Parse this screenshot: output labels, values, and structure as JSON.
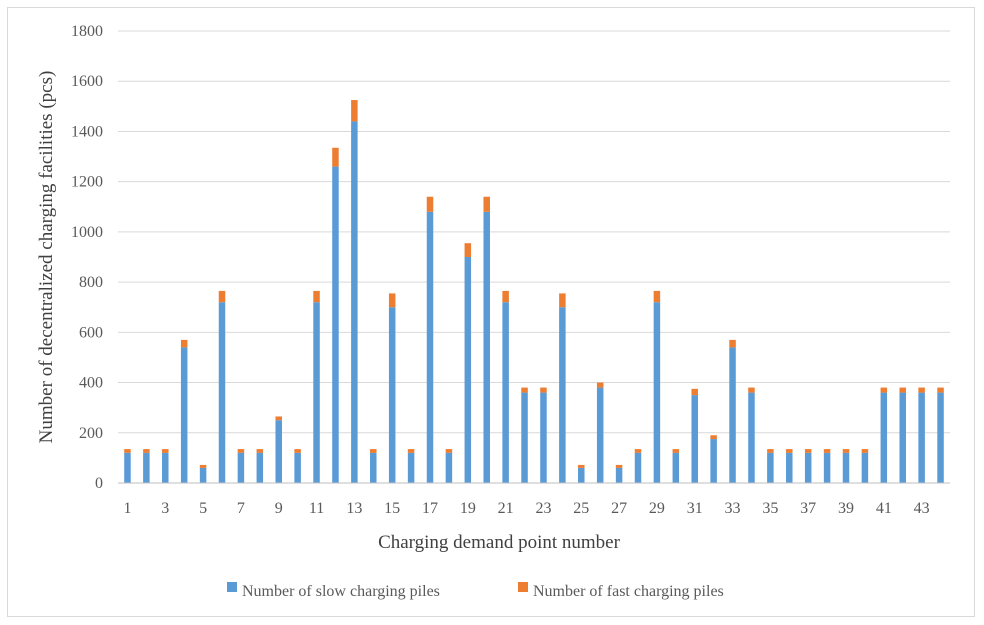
{
  "chart_data": {
    "type": "bar",
    "stacked": true,
    "x": [
      1,
      2,
      3,
      4,
      5,
      6,
      7,
      8,
      9,
      10,
      11,
      12,
      13,
      14,
      15,
      16,
      17,
      18,
      19,
      20,
      21,
      22,
      23,
      24,
      25,
      26,
      27,
      28,
      29,
      30,
      31,
      32,
      33,
      34,
      35,
      36,
      37,
      38,
      39,
      40,
      41,
      42,
      43,
      44
    ],
    "x_tick_labels": [
      "1",
      "3",
      "5",
      "7",
      "9",
      "11",
      "13",
      "15",
      "17",
      "19",
      "21",
      "23",
      "25",
      "27",
      "29",
      "31",
      "33",
      "35",
      "37",
      "39",
      "41",
      "43"
    ],
    "series": [
      {
        "name": "Number of slow charging piles",
        "color": "#5b9bd5",
        "values": [
          120,
          120,
          120,
          540,
          60,
          720,
          120,
          120,
          250,
          120,
          720,
          1260,
          1440,
          120,
          700,
          120,
          1080,
          120,
          900,
          1080,
          720,
          360,
          360,
          700,
          60,
          380,
          60,
          120,
          720,
          120,
          350,
          175,
          540,
          360,
          120,
          120,
          120,
          120,
          120,
          120,
          360,
          360,
          360,
          360
        ]
      },
      {
        "name": "Number of fast charging piles",
        "color": "#ed7d31",
        "values": [
          15,
          15,
          15,
          30,
          12,
          45,
          15,
          15,
          15,
          15,
          45,
          75,
          85,
          15,
          55,
          15,
          60,
          15,
          55,
          60,
          45,
          20,
          20,
          55,
          12,
          20,
          12,
          15,
          45,
          15,
          25,
          15,
          30,
          20,
          15,
          15,
          15,
          15,
          15,
          15,
          20,
          20,
          20,
          20
        ]
      }
    ],
    "xlabel": "Charging demand point number",
    "ylabel": "Number of decentralized charging facilities (pcs)",
    "ylim": [
      0,
      1800
    ],
    "yticks": [
      0,
      200,
      400,
      600,
      800,
      1000,
      1200,
      1400,
      1600,
      1800
    ],
    "grid": true,
    "legend_position": "bottom"
  }
}
